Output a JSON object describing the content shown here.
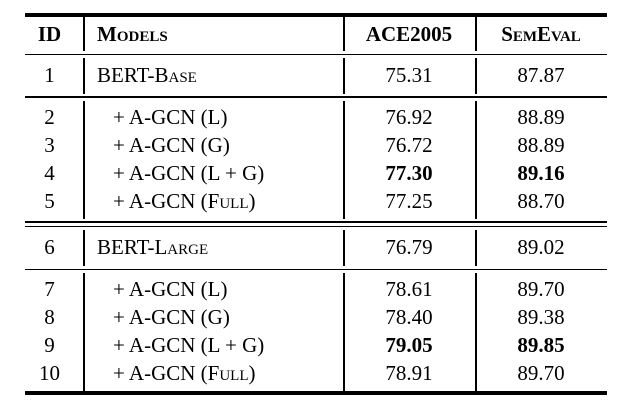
{
  "table": {
    "header": {
      "id": "ID",
      "models": "Models",
      "ace2005": "ACE2005",
      "semeval": "SemEval"
    },
    "sections": [
      {
        "name": "bert-base",
        "rows": [
          {
            "id": "1",
            "model": "BERT-Base",
            "ace2005": "75.31",
            "semeval": "87.87",
            "emphasis": false,
            "indent": false
          }
        ]
      },
      {
        "name": "bert-base-agcn-variants",
        "rows": [
          {
            "id": "2",
            "model": "+ A-GCN (L)",
            "ace2005": "76.92",
            "semeval": "88.89",
            "emphasis": false,
            "indent": true
          },
          {
            "id": "3",
            "model": "+ A-GCN (G)",
            "ace2005": "76.72",
            "semeval": "88.89",
            "emphasis": false,
            "indent": true
          },
          {
            "id": "4",
            "model": "+ A-GCN (L + G)",
            "ace2005": "77.30",
            "semeval": "89.16",
            "emphasis": true,
            "indent": true
          },
          {
            "id": "5",
            "model": "+ A-GCN (Full)",
            "ace2005": "77.25",
            "semeval": "88.70",
            "emphasis": false,
            "indent": true
          }
        ]
      },
      {
        "name": "bert-large",
        "rows": [
          {
            "id": "6",
            "model": "BERT-Large",
            "ace2005": "76.79",
            "semeval": "89.02",
            "emphasis": false,
            "indent": false
          }
        ]
      },
      {
        "name": "bert-large-agcn-variants",
        "rows": [
          {
            "id": "7",
            "model": "+ A-GCN (L)",
            "ace2005": "78.61",
            "semeval": "89.70",
            "emphasis": false,
            "indent": true
          },
          {
            "id": "8",
            "model": "+ A-GCN (G)",
            "ace2005": "78.40",
            "semeval": "89.38",
            "emphasis": false,
            "indent": true
          },
          {
            "id": "9",
            "model": "+ A-GCN (L + G)",
            "ace2005": "79.05",
            "semeval": "89.85",
            "emphasis": true,
            "indent": true
          },
          {
            "id": "10",
            "model": "+ A-GCN (Full)",
            "ace2005": "78.91",
            "semeval": "89.70",
            "emphasis": false,
            "indent": true
          }
        ]
      }
    ],
    "colors": {
      "text": "#000000",
      "background": "#ffffff",
      "rule": "#000000"
    }
  }
}
